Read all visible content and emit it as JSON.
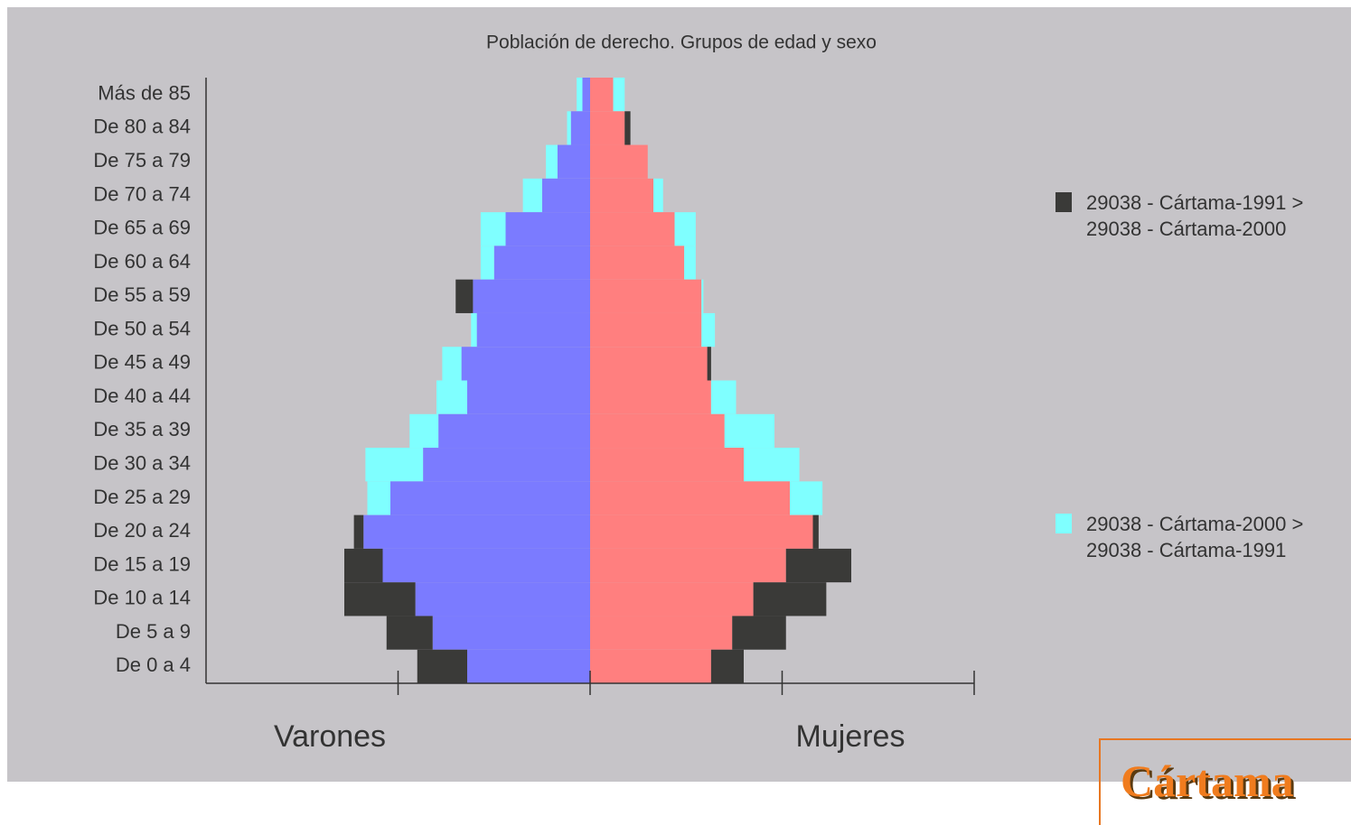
{
  "chart_data": {
    "type": "population-pyramid",
    "title": "Población de derecho. Grupos de edad y sexo",
    "categories": [
      "Más de 85",
      "De 80 a 84",
      "De 75 a 79",
      "De 70 a 74",
      "De 65 a 69",
      "De 60 a 64",
      "De 55 a 59",
      "De 50 a 54",
      "De 45 a 49",
      "De 40 a 44",
      "De 35 a 39",
      "De 30 a 34",
      "De 25 a 29",
      "De 20 a 24",
      "De 15 a 19",
      "De 10 a 14",
      "De 5 a 9",
      "De 0 a 4"
    ],
    "groups": [
      {
        "name": "Varones",
        "side": "left",
        "color": "#7b7bff",
        "values_1991": [
          4,
          10,
          17,
          25,
          44,
          50,
          70,
          59,
          67,
          64,
          79,
          87,
          104,
          123,
          128,
          128,
          106,
          90
        ],
        "values_2000": [
          7,
          12,
          23,
          35,
          57,
          57,
          61,
          62,
          77,
          80,
          94,
          117,
          116,
          118,
          108,
          91,
          82,
          64
        ]
      },
      {
        "name": "Mujeres",
        "side": "right",
        "color": "#ff7f7f",
        "values_1991": [
          12,
          21,
          30,
          33,
          44,
          49,
          58,
          58,
          63,
          63,
          70,
          80,
          104,
          119,
          136,
          123,
          102,
          80
        ],
        "values_2000": [
          18,
          18,
          30,
          38,
          55,
          55,
          59,
          65,
          61,
          76,
          96,
          109,
          121,
          116,
          102,
          85,
          74,
          63
        ]
      }
    ],
    "legend": [
      {
        "name": "29038 - Cártama-1991 > 29038 - Cártama-2000",
        "color": "#3a3a38"
      },
      {
        "name": "29038 - Cártama-2000 > 29038 - Cártama-1991",
        "color": "#7fffff"
      }
    ],
    "xlim": [
      -200,
      200
    ],
    "xticks": [
      -100,
      0,
      100,
      200
    ]
  },
  "badge": "Cártama"
}
